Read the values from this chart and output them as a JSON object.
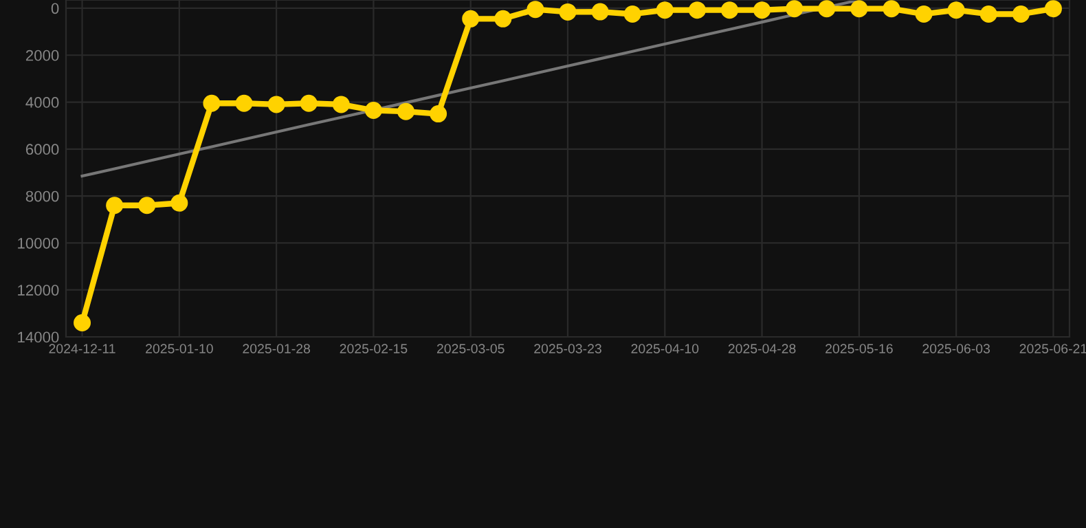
{
  "chart_data": {
    "type": "line",
    "categories": [
      "2024-12-11",
      null,
      null,
      "2025-01-10",
      null,
      null,
      "2025-01-28",
      null,
      null,
      "2025-02-15",
      null,
      null,
      "2025-03-05",
      null,
      null,
      "2025-03-23",
      null,
      null,
      "2025-04-10",
      null,
      null,
      "2025-04-28",
      null,
      null,
      "2025-05-16",
      null,
      null,
      "2025-06-03",
      null,
      null,
      "2025-06-21"
    ],
    "series": [
      {
        "color": "#ffd200",
        "marker": "circle",
        "values": [
          13400,
          8400,
          8400,
          8300,
          4050,
          4050,
          4100,
          4050,
          4100,
          4350,
          4400,
          4500,
          450,
          450,
          50,
          160,
          150,
          250,
          80,
          80,
          80,
          80,
          20,
          20,
          20,
          20,
          250,
          80,
          250,
          250,
          20
        ]
      },
      {
        "color": "#777777",
        "marker": "none",
        "values": [
          7150,
          6840,
          6525,
          6210,
          5900,
          5590,
          5275,
          4960,
          4650,
          4340,
          4025,
          3710,
          3400,
          3090,
          2775,
          2460,
          2150,
          1840,
          1525,
          1210,
          900,
          590,
          275,
          -40,
          -350,
          null,
          null,
          null,
          null,
          null,
          null
        ]
      }
    ],
    "ylim": [
      14000,
      -350
    ],
    "yticks": [
      0,
      2000,
      4000,
      6000,
      8000,
      10000,
      12000,
      14000
    ],
    "grid": true,
    "line_style": "solid"
  }
}
